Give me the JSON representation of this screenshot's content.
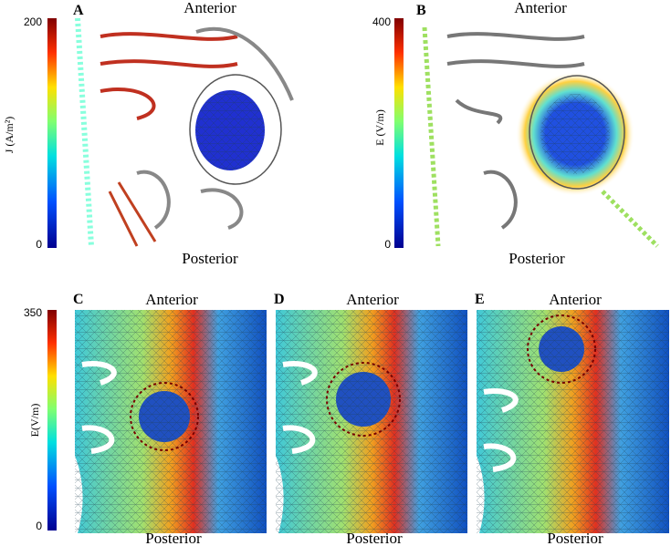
{
  "panels": [
    {
      "label": "A",
      "top": "Anterior",
      "bottom": "Posterior"
    },
    {
      "label": "B",
      "top": "Anterior",
      "bottom": "Posterior"
    },
    {
      "label": "C",
      "top": "Anterior",
      "bottom": "Posterior"
    },
    {
      "label": "D",
      "top": "Anterior",
      "bottom": "Posterior"
    },
    {
      "label": "E",
      "top": "Anterior",
      "bottom": "Posterior"
    }
  ],
  "colorbars": [
    {
      "label": "J (A/m²)",
      "max": 200,
      "min": 0
    },
    {
      "label": "E (V/m)",
      "max": 400,
      "min": 0
    },
    {
      "label": "E(V/m)",
      "max": 350,
      "min": 0
    }
  ]
}
